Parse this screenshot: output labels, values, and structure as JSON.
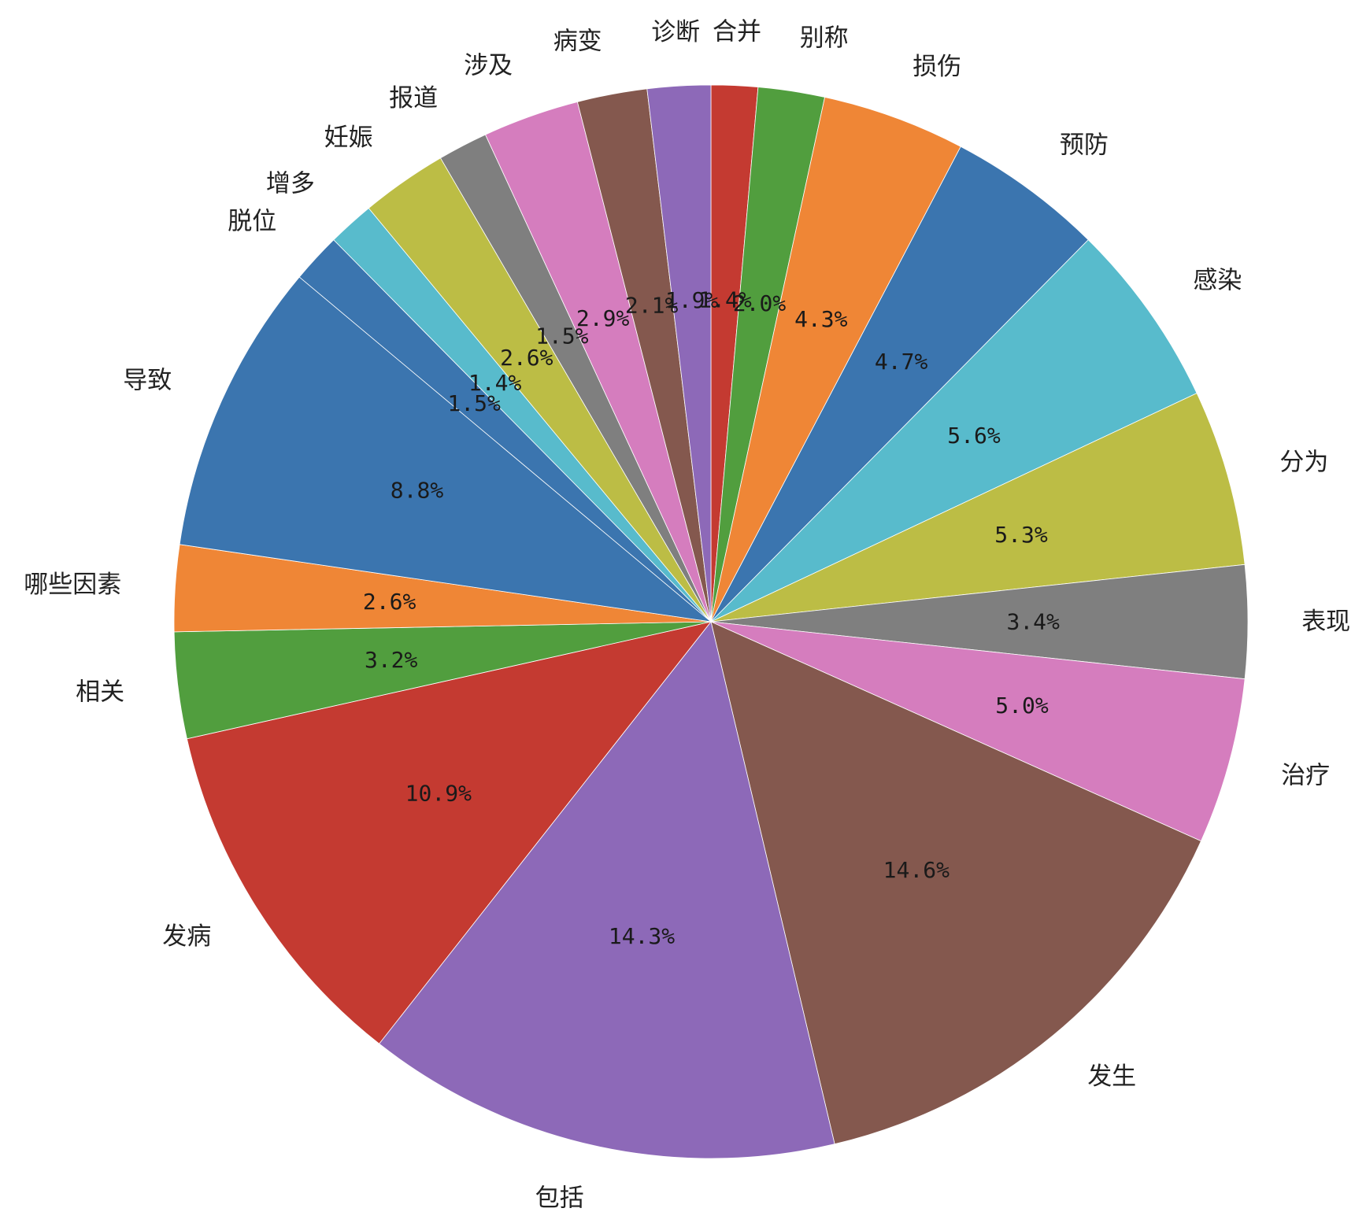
{
  "chart_data": {
    "type": "pie",
    "start": "top",
    "direction": "clockwise",
    "slices": [
      {
        "label": "合并",
        "value": 1.4,
        "value_label": "1.4%",
        "color": "#c43a31"
      },
      {
        "label": "别称",
        "value": 2.0,
        "value_label": "2.0%",
        "color": "#519e3e"
      },
      {
        "label": "损伤",
        "value": 4.3,
        "value_label": "4.3%",
        "color": "#ef8636"
      },
      {
        "label": "预防",
        "value": 4.7,
        "value_label": "4.7%",
        "color": "#3b75af"
      },
      {
        "label": "感染",
        "value": 5.6,
        "value_label": "5.6%",
        "color": "#58bbcc"
      },
      {
        "label": "分为",
        "value": 5.3,
        "value_label": "5.3%",
        "color": "#bcbd45"
      },
      {
        "label": "表现",
        "value": 3.4,
        "value_label": "3.4%",
        "color": "#7f7f7f"
      },
      {
        "label": "治疗",
        "value": 5.0,
        "value_label": "5.0%",
        "color": "#d57dbe"
      },
      {
        "label": "发生",
        "value": 14.6,
        "value_label": "14.6%",
        "color": "#84584e"
      },
      {
        "label": "包括",
        "value": 14.3,
        "value_label": "14.3%",
        "color": "#8d69b8"
      },
      {
        "label": "发病",
        "value": 10.9,
        "value_label": "10.9%",
        "color": "#c43a31"
      },
      {
        "label": "相关",
        "value": 3.2,
        "value_label": "3.2%",
        "color": "#519e3e"
      },
      {
        "label": "哪些因素",
        "value": 2.6,
        "value_label": "2.6%",
        "color": "#ef8636"
      },
      {
        "label": "导致",
        "value": 8.8,
        "value_label": "8.8%",
        "color": "#3b75af"
      },
      {
        "label": "脱位",
        "value": 1.5,
        "value_label": "1.5%",
        "color": "#3b75af"
      },
      {
        "label": "增多",
        "value": 1.4,
        "value_label": "1.4%",
        "color": "#58bbcc"
      },
      {
        "label": "妊娠",
        "value": 2.6,
        "value_label": "2.6%",
        "color": "#bcbd45"
      },
      {
        "label": "报道",
        "value": 1.5,
        "value_label": "1.5%",
        "color": "#7f7f7f"
      },
      {
        "label": "涉及",
        "value": 2.9,
        "value_label": "2.9%",
        "color": "#d57dbe"
      },
      {
        "label": "病变",
        "value": 2.1,
        "value_label": "2.1%",
        "color": "#84584e"
      },
      {
        "label": "诊断",
        "value": 1.9,
        "value_label": "1.9%",
        "color": "#8d69b8"
      }
    ]
  }
}
